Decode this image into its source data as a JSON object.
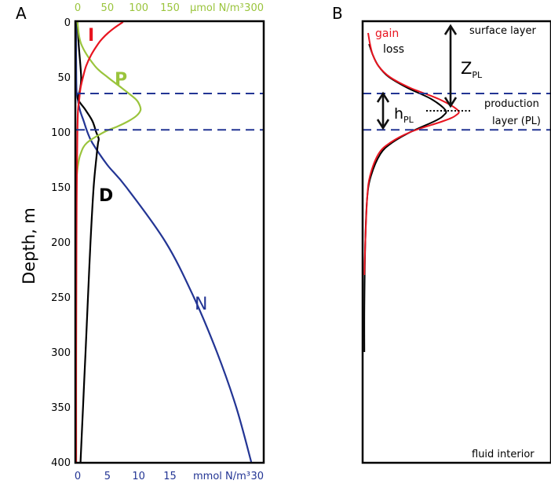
{
  "panel_a": {
    "label": "A",
    "top_axis_title": "µmol N/m³",
    "bottom_axis_title": "mmol N/m³",
    "ylabel": "Depth, m",
    "curve_labels": {
      "I": "I",
      "P": "P",
      "D": "D",
      "N": "N"
    }
  },
  "panel_b": {
    "label": "B",
    "legend": {
      "gain": "gain",
      "loss": "loss"
    },
    "annotations": {
      "surface_layer": "surface layer",
      "z_main": "Z",
      "z_sub": "PL",
      "h_main": "h",
      "h_sub": "PL",
      "production_line1": "production",
      "production_line2": "layer (PL)",
      "fluid_interior": "fluid interior"
    }
  },
  "colors": {
    "light": "#e8141f",
    "phytoplankton": "#9ac43c",
    "detritus": "#000000",
    "nutrient": "#233594",
    "gain": "#e8141f",
    "loss": "#000000",
    "layer_lines": "#233594",
    "top_axis": "#9ac43c",
    "bottom_axis": "#233594"
  },
  "chart_data": [
    {
      "type": "line",
      "panel": "A",
      "ylabel": "Depth, m",
      "ylim": [
        400,
        0
      ],
      "yticks": [
        0,
        50,
        100,
        150,
        200,
        250,
        300,
        350,
        400
      ],
      "top_axis": {
        "title": "µmol N/m³",
        "range": [
          0,
          300
        ],
        "ticks": [
          0,
          50,
          100,
          150,
          300
        ],
        "color": "#9ac43c"
      },
      "bottom_axis": {
        "title": "mmol N/m³",
        "range": [
          0,
          30
        ],
        "ticks": [
          0,
          5,
          10,
          15,
          30
        ],
        "color": "#233594"
      },
      "layer_boundaries": [
        65,
        98
      ],
      "series": [
        {
          "name": "I",
          "axis": "top",
          "color": "#e8141f",
          "depth": [
            0,
            5,
            10,
            15,
            20,
            30,
            40,
            50,
            60,
            70,
            80,
            100,
            150,
            200,
            300,
            400
          ],
          "values": [
            75,
            62,
            51,
            42,
            35,
            24,
            16,
            11,
            7,
            5,
            3,
            2,
            1,
            0.5,
            0,
            0
          ]
        },
        {
          "name": "P",
          "axis": "top",
          "color": "#9ac43c",
          "depth": [
            0,
            20,
            40,
            50,
            60,
            70,
            75,
            80,
            85,
            90,
            95,
            100,
            110,
            120,
            130,
            140,
            150,
            200,
            400
          ],
          "values": [
            2,
            8,
            30,
            50,
            73,
            95,
            101,
            103,
            97,
            84,
            66,
            45,
            17,
            7,
            3,
            1,
            0,
            0,
            0
          ]
        },
        {
          "name": "D",
          "axis": "bottom",
          "color": "#000000",
          "depth": [
            0,
            20,
            50,
            62,
            70,
            80,
            90,
            100,
            106,
            110,
            120,
            150,
            200,
            250,
            300,
            350,
            400
          ],
          "values": [
            0.2,
            0.4,
            0.8,
            0.6,
            0.3,
            1.5,
            2.6,
            3.2,
            3.6,
            3.5,
            3.3,
            2.8,
            2.3,
            1.9,
            1.5,
            1.1,
            0.7
          ]
        },
        {
          "name": "N",
          "axis": "bottom",
          "color": "#233594",
          "depth": [
            0,
            30,
            60,
            70,
            80,
            90,
            100,
            110,
            130,
            150,
            200,
            250,
            300,
            350,
            400
          ],
          "values": [
            0,
            0,
            0.05,
            0.25,
            0.6,
            1.2,
            1.8,
            2.6,
            5.0,
            8.0,
            14.3,
            18.8,
            22.5,
            25.6,
            28.0
          ]
        }
      ]
    },
    {
      "type": "line",
      "panel": "B",
      "layer_boundaries": [
        65,
        98
      ],
      "series": [
        {
          "name": "gain",
          "color": "#e8141f",
          "depth": [
            10,
            20,
            30,
            40,
            50,
            60,
            70,
            80,
            85,
            90,
            100,
            110,
            120,
            140,
            160,
            200,
            230
          ],
          "values": [
            0.05,
            0.07,
            0.1,
            0.16,
            0.28,
            0.5,
            0.8,
            1.0,
            0.98,
            0.85,
            0.5,
            0.28,
            0.16,
            0.07,
            0.04,
            0.02,
            0.01
          ]
        },
        {
          "name": "loss",
          "color": "#000000",
          "depth": [
            20,
            30,
            40,
            50,
            60,
            70,
            80,
            85,
            90,
            100,
            110,
            120,
            140,
            160,
            200,
            260,
            300
          ],
          "values": [
            0.06,
            0.1,
            0.16,
            0.27,
            0.47,
            0.72,
            0.87,
            0.85,
            0.76,
            0.5,
            0.3,
            0.18,
            0.08,
            0.04,
            0.02,
            0.01,
            0.01
          ]
        }
      ]
    }
  ]
}
